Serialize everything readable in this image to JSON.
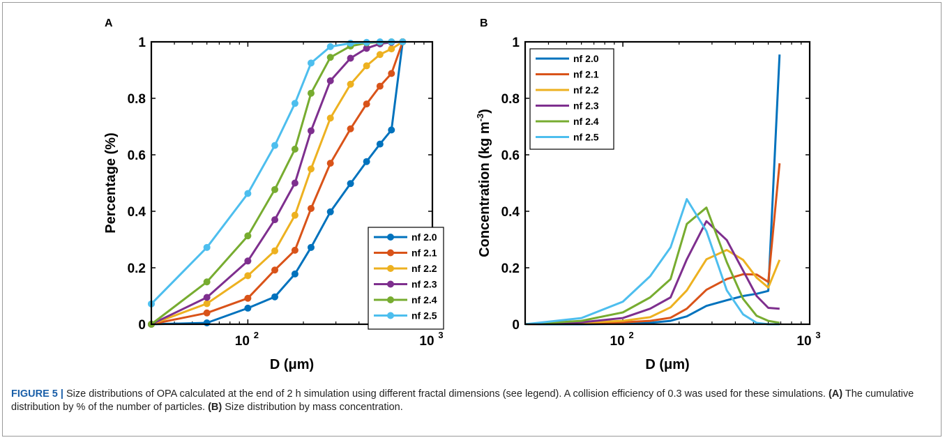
{
  "caption": {
    "label": "FIGURE 5 |",
    "text1": " Size distributions of OPA calculated at the end of 2 h simulation using different fractal dimensions (see legend). A collision efficiency of 0.3 was used for these simulations. ",
    "ref_a": "(A)",
    "text2": " The cumulative distribution by % of the number of particles. ",
    "ref_b": "(B)",
    "text3": " Size distribution by mass concentration."
  },
  "series_colors": [
    "#0072BD",
    "#D95319",
    "#EDB120",
    "#7E2F8E",
    "#77AC30",
    "#4DBEEE"
  ],
  "chart_data": [
    {
      "panel": "A",
      "type": "line",
      "markers": true,
      "xscale": "log",
      "xlabel": "D (μm)",
      "ylabel": "Percentage (%)",
      "xlim": [
        30,
        1000
      ],
      "ylim": [
        0,
        1
      ],
      "xticks": [
        {
          "value": 100,
          "base": "10",
          "exp": "2"
        },
        {
          "value": 1000,
          "base": "10",
          "exp": "3"
        }
      ],
      "yticks": [
        "0",
        "0.2",
        "0.4",
        "0.6",
        "0.8",
        "1"
      ],
      "legend": "bottom-right",
      "x": [
        30,
        60,
        100,
        140,
        180,
        220,
        280,
        360,
        440,
        520,
        600,
        690
      ],
      "series": [
        {
          "name": "nf 2.0",
          "values": [
            0,
            0.005,
            0.057,
            0.097,
            0.178,
            0.272,
            0.398,
            0.498,
            0.576,
            0.638,
            0.688,
            1.0
          ]
        },
        {
          "name": "nf 2.1",
          "values": [
            0,
            0.04,
            0.092,
            0.192,
            0.262,
            0.41,
            0.57,
            0.692,
            0.78,
            0.843,
            0.888,
            1.0
          ]
        },
        {
          "name": "nf 2.2",
          "values": [
            0,
            0.073,
            0.172,
            0.26,
            0.386,
            0.55,
            0.73,
            0.85,
            0.915,
            0.955,
            0.975,
            1.0
          ]
        },
        {
          "name": "nf 2.3",
          "values": [
            0,
            0.095,
            0.224,
            0.37,
            0.5,
            0.685,
            0.862,
            0.942,
            0.977,
            0.993,
            0.998,
            1.0
          ]
        },
        {
          "name": "nf 2.4",
          "values": [
            0,
            0.15,
            0.313,
            0.477,
            0.62,
            0.818,
            0.945,
            0.985,
            0.996,
            0.999,
            1.0,
            1.0
          ]
        },
        {
          "name": "nf 2.5",
          "values": [
            0.072,
            0.272,
            0.463,
            0.633,
            0.782,
            0.925,
            0.983,
            0.995,
            0.998,
            1.0,
            1.0,
            1.0
          ]
        }
      ]
    },
    {
      "panel": "B",
      "type": "line",
      "markers": false,
      "xscale": "log",
      "xlabel": "D (μm)",
      "ylabel": "Concentration (kg m^-3)",
      "xlim": [
        30,
        1000
      ],
      "ylim": [
        0,
        1
      ],
      "xticks": [
        {
          "value": 100,
          "base": "10",
          "exp": "2"
        },
        {
          "value": 1000,
          "base": "10",
          "exp": "3"
        }
      ],
      "yticks": [
        "0",
        "0.2",
        "0.4",
        "0.6",
        "0.8",
        "1"
      ],
      "legend": "top-left",
      "x": [
        30,
        60,
        100,
        140,
        180,
        220,
        280,
        360,
        440,
        520,
        600,
        690
      ],
      "series": [
        {
          "name": "nf 2.0",
          "values": [
            0,
            0,
            0.002,
            0.005,
            0.012,
            0.028,
            0.065,
            0.085,
            0.1,
            0.108,
            0.118,
            0.955
          ]
        },
        {
          "name": "nf 2.1",
          "values": [
            0,
            0.003,
            0.007,
            0.012,
            0.023,
            0.055,
            0.122,
            0.16,
            0.177,
            0.176,
            0.15,
            0.57
          ]
        },
        {
          "name": "nf 2.2",
          "values": [
            0,
            0.005,
            0.012,
            0.025,
            0.06,
            0.12,
            0.23,
            0.263,
            0.228,
            0.165,
            0.13,
            0.228
          ]
        },
        {
          "name": "nf 2.3",
          "values": [
            0,
            0.007,
            0.022,
            0.055,
            0.095,
            0.23,
            0.365,
            0.298,
            0.19,
            0.1,
            0.058,
            0.055
          ]
        },
        {
          "name": "nf 2.4",
          "values": [
            0,
            0.012,
            0.042,
            0.095,
            0.16,
            0.355,
            0.413,
            0.22,
            0.09,
            0.03,
            0.012,
            0.005
          ]
        },
        {
          "name": "nf 2.5",
          "values": [
            0,
            0.022,
            0.08,
            0.17,
            0.272,
            0.443,
            0.33,
            0.12,
            0.035,
            0.005,
            0,
            0
          ]
        }
      ]
    }
  ],
  "panel_labels": [
    "A",
    "B"
  ]
}
